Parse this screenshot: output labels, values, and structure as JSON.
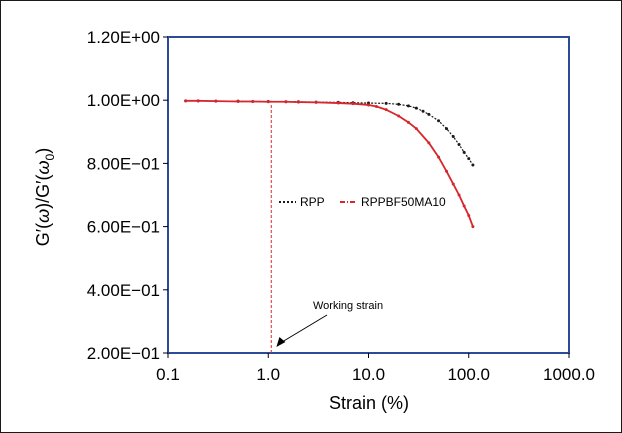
{
  "chart_data": {
    "type": "scatter",
    "xlabel": "Strain (%)",
    "ylabel_parts": [
      "G′(",
      "ω",
      ")/G′(",
      "ω",
      "0",
      ")"
    ],
    "x_scale": "log",
    "xlim": [
      0.1,
      1000
    ],
    "ylim": [
      0.2,
      1.2
    ],
    "x_ticks": [
      0.1,
      1,
      10,
      100,
      1000
    ],
    "x_tick_labels": [
      "0.1",
      "1.0",
      "10.0",
      "100.0",
      "1000.0"
    ],
    "y_ticks": [
      0.2,
      0.4,
      0.6,
      0.8,
      1.0,
      1.2
    ],
    "y_tick_labels": [
      "2.00E−01",
      "4.00E−01",
      "6.00E−01",
      "8.00E−01",
      "1.00E+00",
      "1.20E+00"
    ],
    "grid": false,
    "legend_position": "center",
    "series": [
      {
        "name": "RPP",
        "color": "#1a1a1a",
        "x": [
          0.15,
          0.2,
          0.3,
          0.5,
          0.7,
          1,
          1.5,
          2,
          3,
          5,
          7,
          10,
          15,
          20,
          25,
          30,
          35,
          40,
          50,
          60,
          70,
          80,
          90,
          100,
          110
        ],
        "y": [
          0.998,
          0.998,
          0.997,
          0.997,
          0.996,
          0.996,
          0.995,
          0.995,
          0.994,
          0.993,
          0.992,
          0.991,
          0.99,
          0.987,
          0.982,
          0.975,
          0.965,
          0.955,
          0.935,
          0.91,
          0.885,
          0.86,
          0.835,
          0.815,
          0.795
        ]
      },
      {
        "name": "RPPBF50MA10",
        "color": "#d7262c",
        "x": [
          0.15,
          0.2,
          0.3,
          0.5,
          0.7,
          1,
          1.5,
          2,
          3,
          5,
          7,
          10,
          12,
          15,
          20,
          25,
          30,
          40,
          50,
          60,
          70,
          80,
          90,
          100,
          110
        ],
        "y": [
          0.998,
          0.998,
          0.997,
          0.996,
          0.996,
          0.995,
          0.995,
          0.994,
          0.993,
          0.991,
          0.989,
          0.985,
          0.98,
          0.97,
          0.95,
          0.93,
          0.91,
          0.865,
          0.82,
          0.775,
          0.735,
          0.7,
          0.665,
          0.635,
          0.6
        ]
      }
    ],
    "annotations": [
      {
        "text": "Working strain",
        "point_x": 1.1,
        "point_y": 0.2
      }
    ],
    "reference_line": {
      "x": 1.0,
      "y_from": 0.2,
      "y_to": 0.99,
      "color": "#d7262c"
    }
  }
}
